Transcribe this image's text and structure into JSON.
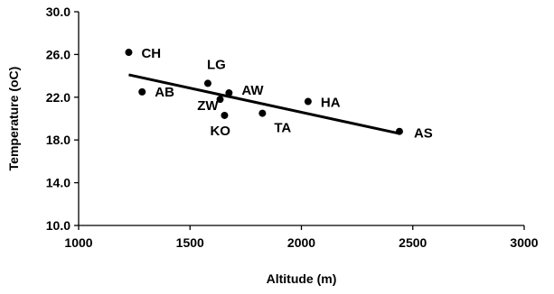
{
  "chart_data": {
    "type": "scatter",
    "xlabel": "Altitude (m)",
    "ylabel": "Temperature (oC)",
    "xlim": [
      1000,
      3000
    ],
    "ylim": [
      10.0,
      30.0
    ],
    "x_ticks": [
      "1000",
      "1500",
      "2000",
      "2500",
      "3000"
    ],
    "y_ticks": [
      "10.0",
      "14.0",
      "18.0",
      "22.0",
      "26.0",
      "30.0"
    ],
    "grid": false,
    "points": [
      {
        "label": "CH",
        "x": 1225,
        "y": 26.2
      },
      {
        "label": "AB",
        "x": 1285,
        "y": 22.5
      },
      {
        "label": "LG",
        "x": 1580,
        "y": 23.3
      },
      {
        "label": "ZW",
        "x": 1635,
        "y": 21.8
      },
      {
        "label": "KO",
        "x": 1655,
        "y": 20.3
      },
      {
        "label": "AW",
        "x": 1675,
        "y": 22.4
      },
      {
        "label": "TA",
        "x": 1825,
        "y": 20.5
      },
      {
        "label": "HA",
        "x": 2030,
        "y": 21.6
      },
      {
        "label": "AS",
        "x": 2440,
        "y": 18.8
      }
    ],
    "trendline": {
      "x": [
        1225,
        2440
      ],
      "y": [
        24.1,
        18.6
      ]
    }
  }
}
